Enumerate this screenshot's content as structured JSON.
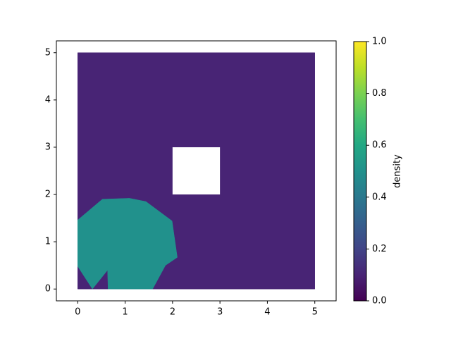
{
  "chart_data": {
    "type": "tripcolor",
    "xlim": [
      -0.45,
      5.45
    ],
    "ylim": [
      -0.25,
      5.25
    ],
    "xticks": [
      0,
      1,
      2,
      3,
      4,
      5
    ],
    "yticks": [
      0,
      1,
      2,
      3,
      4,
      5
    ],
    "colormap": "viridis",
    "colorbar": {
      "label": "density",
      "lim": [
        0,
        1
      ],
      "ticks": [
        {
          "value": 0,
          "label": "0.0"
        },
        {
          "value": 0.2,
          "label": "0.2"
        },
        {
          "value": 0.4,
          "label": "0.4"
        },
        {
          "value": 0.6,
          "label": "0.6"
        },
        {
          "value": 0.8,
          "label": "0.8"
        },
        {
          "value": 1,
          "label": "1.0"
        }
      ]
    },
    "regions": [
      {
        "value": 0.1,
        "x": [
          0,
          5,
          5,
          0
        ],
        "y": [
          0,
          0,
          5,
          5
        ]
      },
      {
        "value": 0.5,
        "x": [
          0,
          0.52,
          1.09,
          1.44,
          1.99,
          2.1,
          1.85,
          1.58,
          0.64,
          0.63,
          0.31,
          0
        ],
        "y": [
          1.46,
          1.9,
          1.92,
          1.85,
          1.44,
          0.67,
          0.5,
          0,
          0,
          0.4,
          0,
          0.48
        ]
      }
    ],
    "holes": [
      {
        "x": [
          2,
          3,
          3,
          2
        ],
        "y": [
          2,
          2,
          3,
          3
        ]
      }
    ]
  }
}
